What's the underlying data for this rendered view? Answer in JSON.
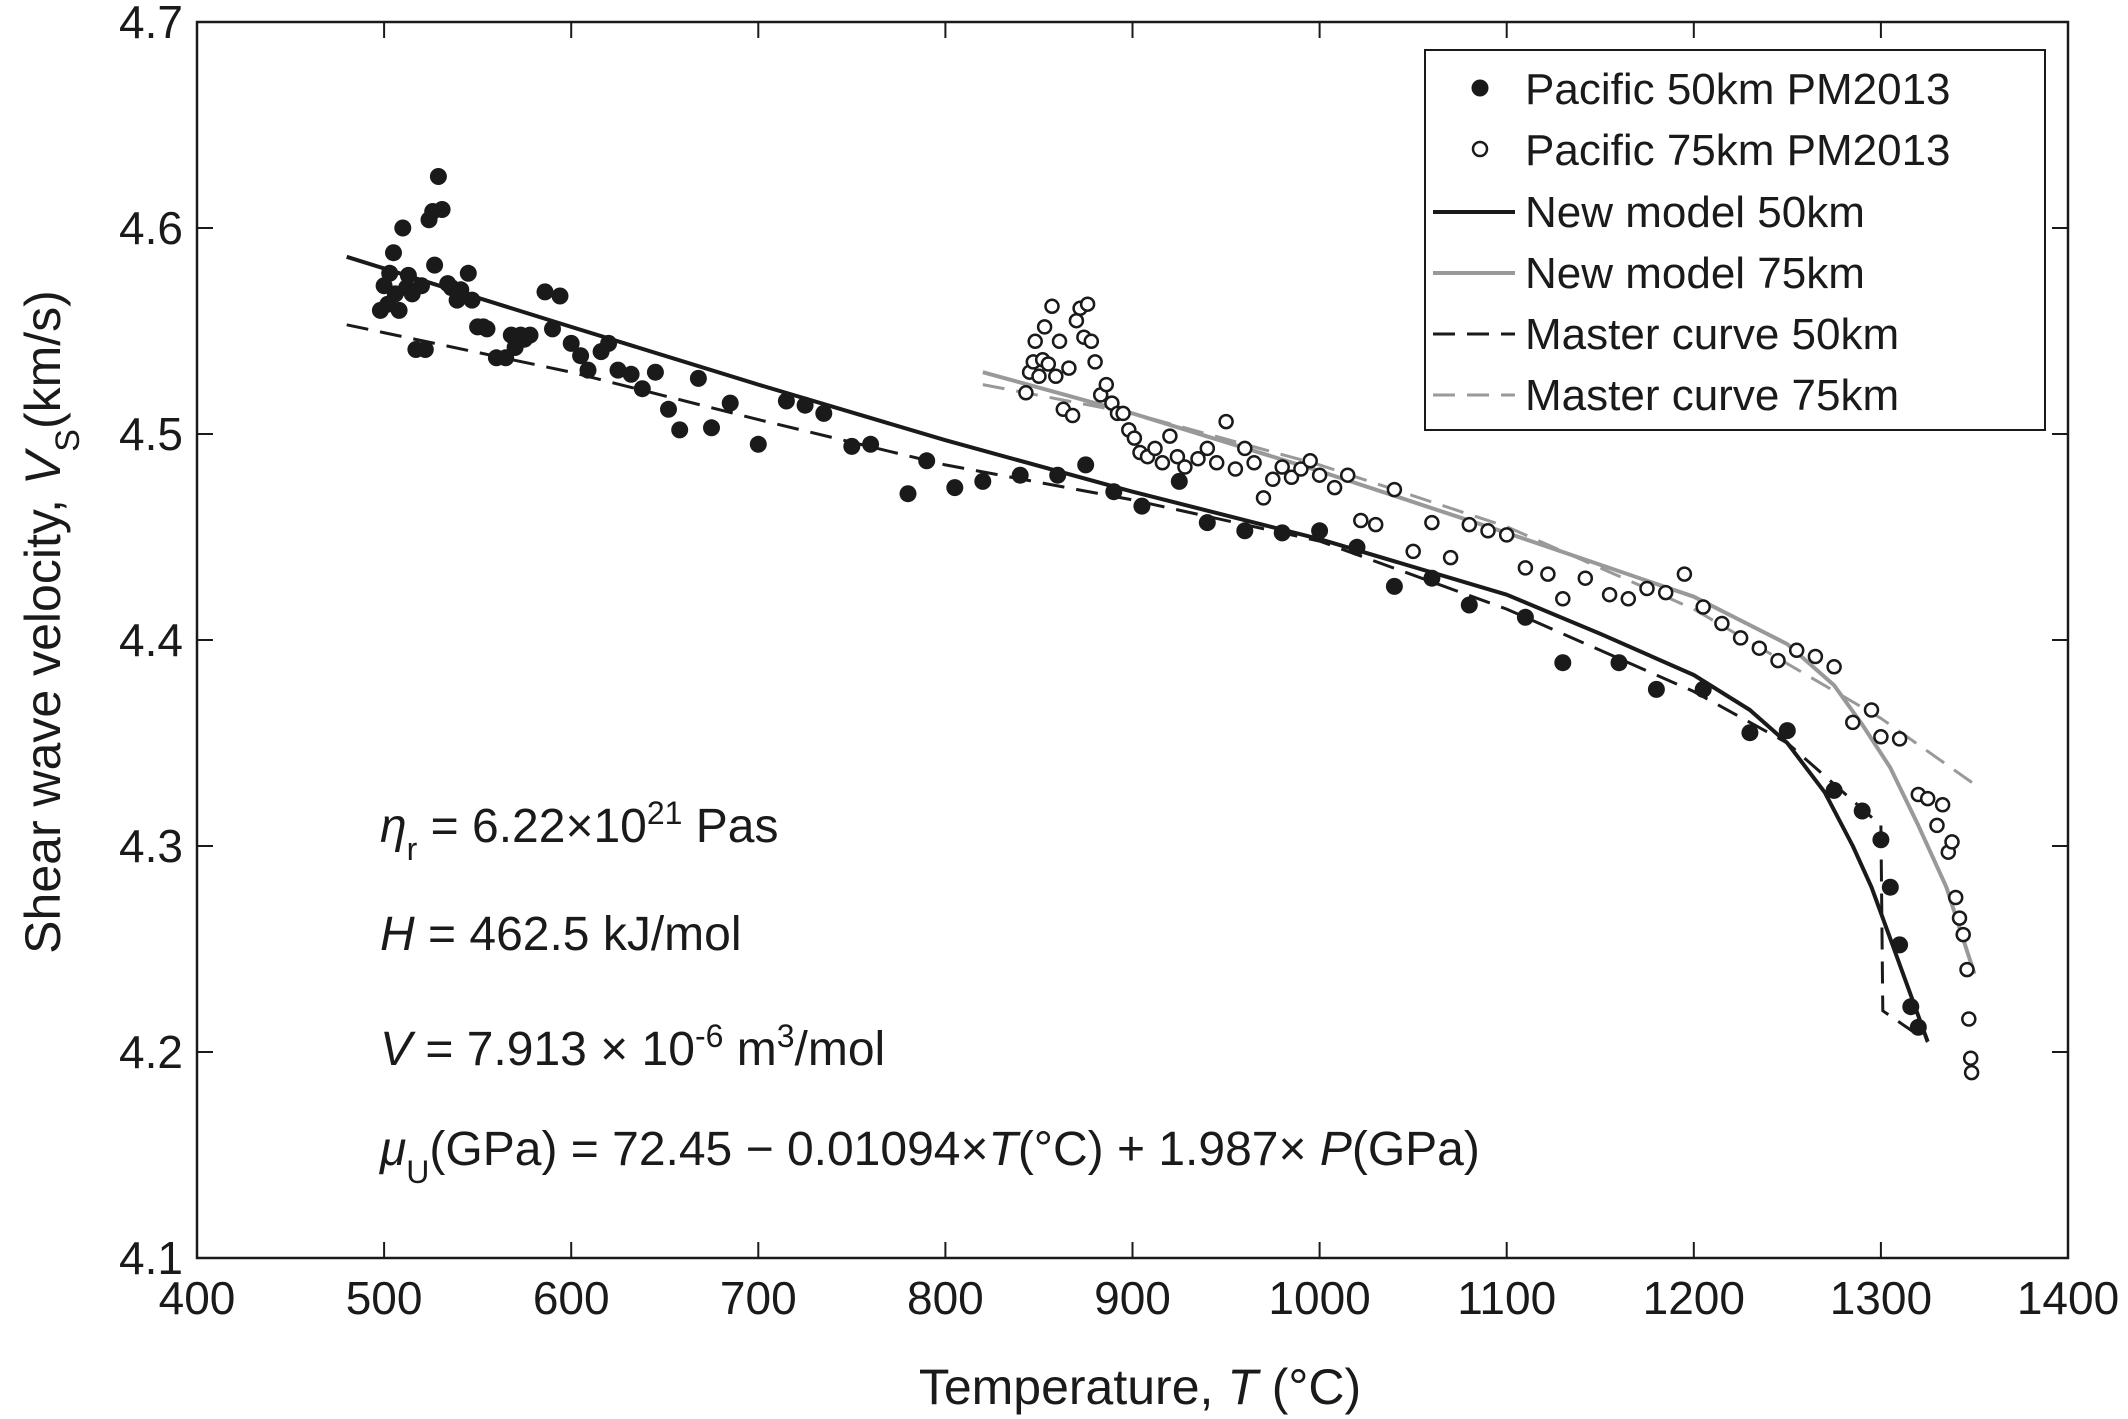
{
  "chart_data": {
    "type": "scatter",
    "xlabel": {
      "prefix": "Temperature, ",
      "var": "T",
      "suffix": " (°C)"
    },
    "ylabel": {
      "prefix": "Shear wave velocity, ",
      "var": "V",
      "sub": "S",
      "suffix": "(km/s)"
    },
    "xlim": [
      400,
      1400
    ],
    "ylim": [
      4.1,
      4.7
    ],
    "xticks": [
      400,
      500,
      600,
      700,
      800,
      900,
      1000,
      1100,
      1200,
      1300,
      1400
    ],
    "yticks": [
      4.1,
      4.2,
      4.3,
      4.4,
      4.5,
      4.6,
      4.7
    ],
    "grid": false,
    "legend_position": "top-right",
    "series": [
      {
        "name": "Pacific 50km PM2013",
        "kind": "scatter",
        "marker": "filled-circle",
        "color": "#1a1a1a",
        "points": [
          [
            498,
            4.56
          ],
          [
            500,
            4.572
          ],
          [
            502,
            4.563
          ],
          [
            503,
            4.578
          ],
          [
            505,
            4.588
          ],
          [
            506,
            4.568
          ],
          [
            508,
            4.56
          ],
          [
            510,
            4.6
          ],
          [
            512,
            4.571
          ],
          [
            513,
            4.577
          ],
          [
            515,
            4.568
          ],
          [
            517,
            4.541
          ],
          [
            520,
            4.572
          ],
          [
            522,
            4.541
          ],
          [
            524,
            4.604
          ],
          [
            526,
            4.608
          ],
          [
            527,
            4.582
          ],
          [
            529,
            4.625
          ],
          [
            531,
            4.609
          ],
          [
            534,
            4.573
          ],
          [
            536,
            4.571
          ],
          [
            539,
            4.565
          ],
          [
            541,
            4.57
          ],
          [
            545,
            4.578
          ],
          [
            547,
            4.565
          ],
          [
            550,
            4.552
          ],
          [
            553,
            4.552
          ],
          [
            555,
            4.551
          ],
          [
            560,
            4.537
          ],
          [
            565,
            4.537
          ],
          [
            568,
            4.548
          ],
          [
            570,
            4.542
          ],
          [
            573,
            4.548
          ],
          [
            575,
            4.546
          ],
          [
            578,
            4.548
          ],
          [
            586,
            4.569
          ],
          [
            590,
            4.551
          ],
          [
            594,
            4.567
          ],
          [
            600,
            4.544
          ],
          [
            605,
            4.538
          ],
          [
            609,
            4.531
          ],
          [
            616,
            4.54
          ],
          [
            620,
            4.544
          ],
          [
            625,
            4.531
          ],
          [
            632,
            4.529
          ],
          [
            638,
            4.522
          ],
          [
            645,
            4.53
          ],
          [
            652,
            4.512
          ],
          [
            658,
            4.502
          ],
          [
            668,
            4.527
          ],
          [
            675,
            4.503
          ],
          [
            685,
            4.515
          ],
          [
            700,
            4.495
          ],
          [
            715,
            4.516
          ],
          [
            725,
            4.514
          ],
          [
            735,
            4.51
          ],
          [
            750,
            4.494
          ],
          [
            760,
            4.495
          ],
          [
            780,
            4.471
          ],
          [
            790,
            4.487
          ],
          [
            805,
            4.474
          ],
          [
            820,
            4.477
          ],
          [
            840,
            4.48
          ],
          [
            860,
            4.48
          ],
          [
            875,
            4.485
          ],
          [
            890,
            4.472
          ],
          [
            905,
            4.465
          ],
          [
            925,
            4.477
          ],
          [
            940,
            4.457
          ],
          [
            960,
            4.453
          ],
          [
            980,
            4.452
          ],
          [
            1000,
            4.453
          ],
          [
            1020,
            4.445
          ],
          [
            1040,
            4.426
          ],
          [
            1060,
            4.43
          ],
          [
            1080,
            4.417
          ],
          [
            1110,
            4.411
          ],
          [
            1130,
            4.389
          ],
          [
            1160,
            4.389
          ],
          [
            1180,
            4.376
          ],
          [
            1205,
            4.376
          ],
          [
            1230,
            4.355
          ],
          [
            1250,
            4.356
          ],
          [
            1275,
            4.327
          ],
          [
            1290,
            4.317
          ],
          [
            1300,
            4.303
          ],
          [
            1305,
            4.28
          ],
          [
            1310,
            4.252
          ],
          [
            1316,
            4.222
          ],
          [
            1320,
            4.212
          ]
        ]
      },
      {
        "name": "Pacific 75km PM2013",
        "kind": "scatter",
        "marker": "open-circle",
        "color": "#1a1a1a",
        "points": [
          [
            843,
            4.52
          ],
          [
            845,
            4.53
          ],
          [
            847,
            4.535
          ],
          [
            848,
            4.545
          ],
          [
            850,
            4.528
          ],
          [
            852,
            4.536
          ],
          [
            853,
            4.552
          ],
          [
            855,
            4.534
          ],
          [
            857,
            4.562
          ],
          [
            859,
            4.528
          ],
          [
            861,
            4.545
          ],
          [
            863,
            4.512
          ],
          [
            866,
            4.532
          ],
          [
            868,
            4.509
          ],
          [
            870,
            4.555
          ],
          [
            872,
            4.561
          ],
          [
            874,
            4.547
          ],
          [
            876,
            4.563
          ],
          [
            878,
            4.545
          ],
          [
            880,
            4.535
          ],
          [
            883,
            4.519
          ],
          [
            886,
            4.524
          ],
          [
            889,
            4.515
          ],
          [
            892,
            4.51
          ],
          [
            895,
            4.51
          ],
          [
            898,
            4.502
          ],
          [
            901,
            4.498
          ],
          [
            904,
            4.491
          ],
          [
            908,
            4.489
          ],
          [
            912,
            4.493
          ],
          [
            916,
            4.486
          ],
          [
            920,
            4.499
          ],
          [
            924,
            4.489
          ],
          [
            928,
            4.484
          ],
          [
            935,
            4.488
          ],
          [
            940,
            4.493
          ],
          [
            945,
            4.486
          ],
          [
            950,
            4.506
          ],
          [
            955,
            4.483
          ],
          [
            960,
            4.493
          ],
          [
            965,
            4.486
          ],
          [
            970,
            4.469
          ],
          [
            975,
            4.478
          ],
          [
            980,
            4.484
          ],
          [
            985,
            4.479
          ],
          [
            990,
            4.483
          ],
          [
            995,
            4.487
          ],
          [
            1000,
            4.48
          ],
          [
            1008,
            4.474
          ],
          [
            1015,
            4.48
          ],
          [
            1022,
            4.458
          ],
          [
            1030,
            4.456
          ],
          [
            1040,
            4.473
          ],
          [
            1050,
            4.443
          ],
          [
            1060,
            4.457
          ],
          [
            1070,
            4.44
          ],
          [
            1080,
            4.456
          ],
          [
            1090,
            4.453
          ],
          [
            1100,
            4.451
          ],
          [
            1110,
            4.435
          ],
          [
            1122,
            4.432
          ],
          [
            1130,
            4.42
          ],
          [
            1142,
            4.43
          ],
          [
            1155,
            4.422
          ],
          [
            1165,
            4.42
          ],
          [
            1175,
            4.425
          ],
          [
            1185,
            4.423
          ],
          [
            1195,
            4.432
          ],
          [
            1205,
            4.416
          ],
          [
            1215,
            4.408
          ],
          [
            1225,
            4.401
          ],
          [
            1235,
            4.396
          ],
          [
            1245,
            4.39
          ],
          [
            1255,
            4.395
          ],
          [
            1265,
            4.392
          ],
          [
            1275,
            4.387
          ],
          [
            1285,
            4.36
          ],
          [
            1295,
            4.366
          ],
          [
            1300,
            4.353
          ],
          [
            1310,
            4.352
          ],
          [
            1320,
            4.325
          ],
          [
            1325,
            4.323
          ],
          [
            1330,
            4.31
          ],
          [
            1333,
            4.32
          ],
          [
            1336,
            4.297
          ],
          [
            1338,
            4.302
          ],
          [
            1340,
            4.275
          ],
          [
            1342,
            4.265
          ],
          [
            1344,
            4.257
          ],
          [
            1346,
            4.24
          ],
          [
            1347,
            4.216
          ],
          [
            1348,
            4.197
          ],
          [
            1348.5,
            4.19
          ]
        ]
      },
      {
        "name": "New model 50km",
        "kind": "line",
        "dash": "solid",
        "color": "#1a1a1a",
        "points": [
          [
            480,
            4.586
          ],
          [
            600,
            4.552
          ],
          [
            700,
            4.524
          ],
          [
            800,
            4.497
          ],
          [
            900,
            4.472
          ],
          [
            1000,
            4.449
          ],
          [
            1100,
            4.422
          ],
          [
            1150,
            4.403
          ],
          [
            1200,
            4.383
          ],
          [
            1230,
            4.366
          ],
          [
            1250,
            4.35
          ],
          [
            1270,
            4.326
          ],
          [
            1285,
            4.3
          ],
          [
            1295,
            4.28
          ],
          [
            1305,
            4.255
          ],
          [
            1315,
            4.23
          ],
          [
            1325,
            4.205
          ]
        ]
      },
      {
        "name": "New model 75km",
        "kind": "line",
        "dash": "solid",
        "color": "#999999",
        "points": [
          [
            820,
            4.53
          ],
          [
            900,
            4.51
          ],
          [
            1000,
            4.482
          ],
          [
            1100,
            4.452
          ],
          [
            1200,
            4.421
          ],
          [
            1250,
            4.398
          ],
          [
            1275,
            4.378
          ],
          [
            1290,
            4.359
          ],
          [
            1305,
            4.338
          ],
          [
            1320,
            4.31
          ],
          [
            1335,
            4.28
          ],
          [
            1350,
            4.238
          ]
        ]
      },
      {
        "name": "Master curve 50km",
        "kind": "line",
        "dash": "dashed",
        "color": "#1a1a1a",
        "points": [
          [
            480,
            4.553
          ],
          [
            600,
            4.53
          ],
          [
            700,
            4.507
          ],
          [
            800,
            4.485
          ],
          [
            900,
            4.468
          ],
          [
            1000,
            4.448
          ],
          [
            1100,
            4.415
          ],
          [
            1200,
            4.375
          ],
          [
            1250,
            4.35
          ],
          [
            1300,
            4.31
          ],
          [
            1301,
            4.22
          ],
          [
            1325,
            4.205
          ]
        ]
      },
      {
        "name": "Master curve 75km",
        "kind": "line",
        "dash": "dashed",
        "color": "#999999",
        "points": [
          [
            820,
            4.524
          ],
          [
            900,
            4.51
          ],
          [
            1000,
            4.485
          ],
          [
            1100,
            4.455
          ],
          [
            1200,
            4.415
          ],
          [
            1300,
            4.362
          ],
          [
            1350,
            4.33
          ]
        ]
      }
    ],
    "annotations": {
      "eta": {
        "sym": "η",
        "sub": "r",
        "eq": " = 6.22×10",
        "sup": "21",
        "unit": " Pas"
      },
      "H": {
        "var": "H",
        "rest": " = 462.5 kJ/mol"
      },
      "V": {
        "var": "V",
        "rest": " = 7.913 × 10",
        "sup": "-6",
        "unit1": " m",
        "sup2": "3",
        "unit2": "/mol"
      },
      "mu": {
        "sym": "μ",
        "sub": "U",
        "p1": "(GPa) = 72.45 − 0.01094×",
        "v1": "T",
        "p2": "(°C) + 1.987× ",
        "v2": "P",
        "p3": "(GPa)"
      }
    }
  }
}
